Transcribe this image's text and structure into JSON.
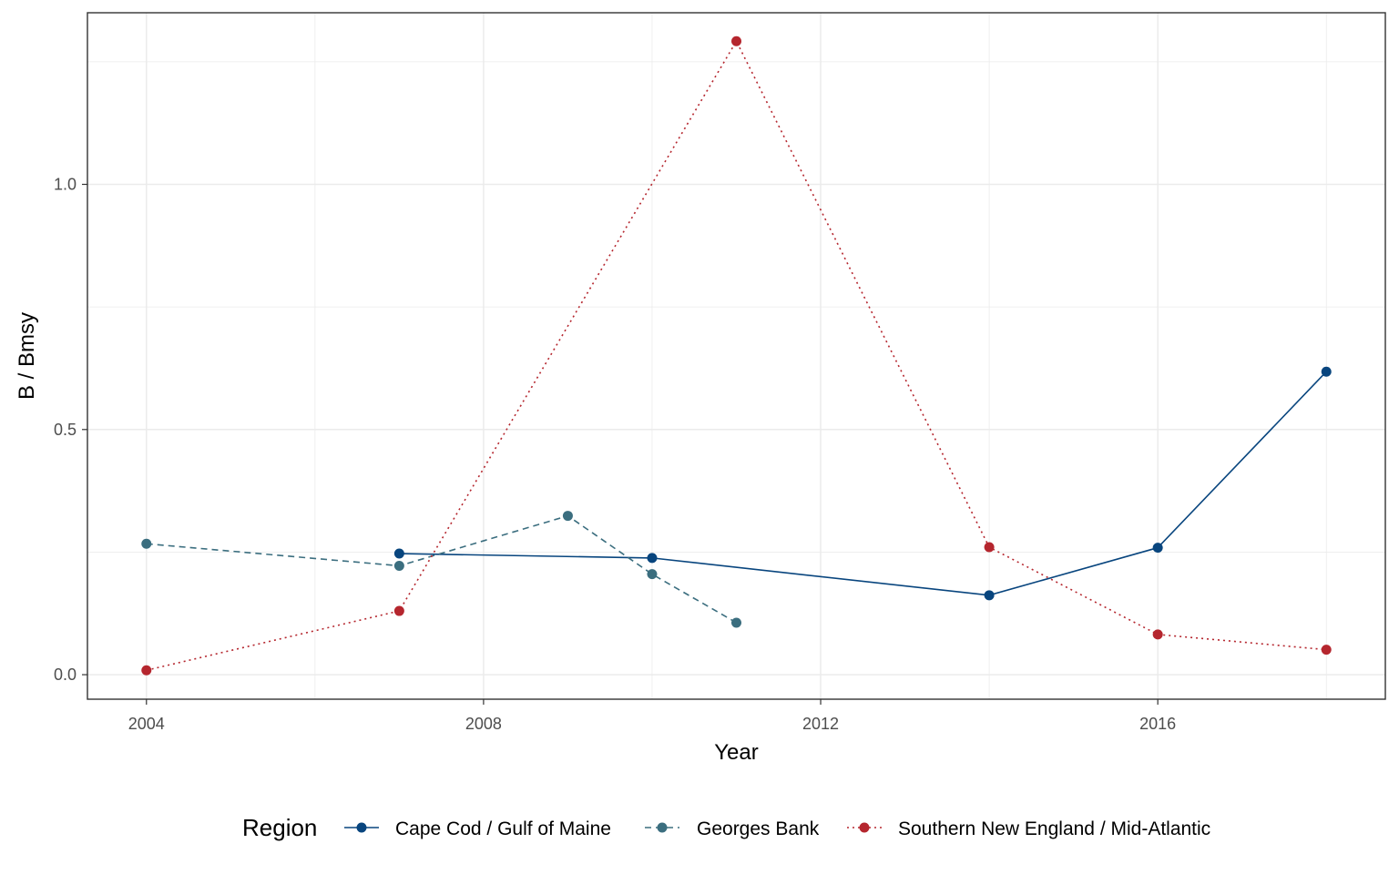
{
  "chart_data": {
    "type": "line",
    "xlabel": "Year",
    "ylabel": "B / Bmsy",
    "xlim": [
      2003.3,
      2018.7
    ],
    "ylim": [
      -0.05,
      1.35
    ],
    "x_ticks": [
      2004,
      2008,
      2012,
      2016
    ],
    "x_tick_labels": [
      "2004",
      "2008",
      "2012",
      "2016"
    ],
    "x_minor_ticks": [
      2006,
      2010,
      2014,
      2018
    ],
    "y_ticks": [
      0.0,
      0.5,
      1.0
    ],
    "y_tick_labels": [
      "0.0",
      "0.5",
      "1.0"
    ],
    "y_minor_ticks": [
      0.25,
      0.75,
      1.25
    ],
    "grid": true,
    "legend": {
      "title": "Region",
      "position": "bottom"
    },
    "series": [
      {
        "name": "Cape Cod / Gulf of Maine",
        "color": "#08457e",
        "line_style": "solid",
        "points": [
          [
            2007,
            0.247
          ],
          [
            2010,
            0.238
          ],
          [
            2014,
            0.162
          ],
          [
            2016,
            0.259
          ],
          [
            2018,
            0.618
          ]
        ]
      },
      {
        "name": "Georges Bank",
        "color": "#3b6e7f",
        "line_style": "dashed",
        "points": [
          [
            2004,
            0.267
          ],
          [
            2007,
            0.222
          ],
          [
            2009,
            0.324
          ],
          [
            2010,
            0.205
          ],
          [
            2011,
            0.106
          ]
        ]
      },
      {
        "name": "Southern New England / Mid-Atlantic",
        "color": "#b5262e",
        "line_style": "dotted",
        "points": [
          [
            2004,
            0.009
          ],
          [
            2007,
            0.13
          ],
          [
            2011,
            1.292
          ],
          [
            2014,
            0.26
          ],
          [
            2016,
            0.082
          ],
          [
            2018,
            0.051
          ]
        ]
      }
    ]
  }
}
